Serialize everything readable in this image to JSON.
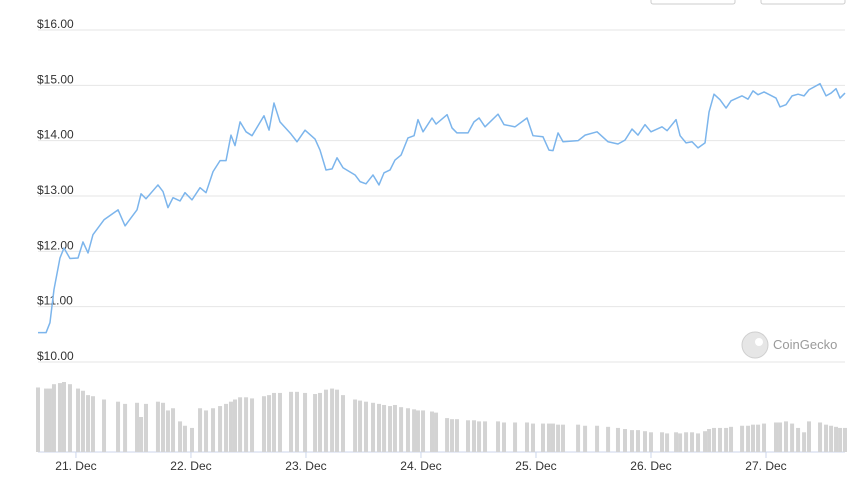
{
  "chart_data": {
    "type": "line",
    "watermark": "CoinGecko",
    "x": [
      20.67,
      20.74,
      20.774,
      20.809,
      20.861,
      20.896,
      20.948,
      21.018,
      21.061,
      21.105,
      21.148,
      21.244,
      21.366,
      21.427,
      21.531,
      21.566,
      21.609,
      21.713,
      21.757,
      21.8,
      21.844,
      21.905,
      21.948,
      22.009,
      22.079,
      22.131,
      22.192,
      22.253,
      22.305,
      22.348,
      22.383,
      22.427,
      22.479,
      22.531,
      22.635,
      22.679,
      22.722,
      22.774,
      22.87,
      22.922,
      22.992,
      23.079,
      23.122,
      23.174,
      23.227,
      23.27,
      23.322,
      23.427,
      23.47,
      23.522,
      23.583,
      23.635,
      23.679,
      23.731,
      23.774,
      23.827,
      23.887,
      23.94,
      23.974,
      24.018,
      24.096,
      24.131,
      24.227,
      24.27,
      24.313,
      24.409,
      24.461,
      24.505,
      24.557,
      24.67,
      24.722,
      24.818,
      24.922,
      24.974,
      25.061,
      25.113,
      25.148,
      25.192,
      25.235,
      25.366,
      25.427,
      25.531,
      25.627,
      25.713,
      25.774,
      25.835,
      25.887,
      25.948,
      26.0,
      26.096,
      26.14,
      26.218,
      26.253,
      26.305,
      26.357,
      26.409,
      26.47,
      26.505,
      26.548,
      26.6,
      26.653,
      26.696,
      26.792,
      26.844,
      26.887,
      26.931,
      26.983,
      27.087,
      27.122,
      27.174,
      27.227,
      27.279,
      27.331,
      27.374,
      27.47,
      27.522,
      27.566,
      27.609,
      27.644,
      27.687
    ],
    "series": [
      {
        "color": "#7cb5ec",
        "values": [
          10.53,
          10.53,
          10.71,
          11.31,
          11.88,
          12.06,
          11.87,
          11.88,
          12.17,
          11.97,
          12.3,
          12.57,
          12.75,
          12.46,
          12.75,
          13.04,
          12.95,
          13.2,
          13.08,
          12.79,
          12.97,
          12.91,
          13.06,
          12.93,
          13.15,
          13.06,
          13.44,
          13.64,
          13.64,
          14.1,
          13.91,
          14.34,
          14.16,
          14.09,
          14.45,
          14.19,
          14.68,
          14.34,
          14.12,
          13.98,
          14.19,
          14.03,
          13.83,
          13.47,
          13.49,
          13.69,
          13.51,
          13.38,
          13.26,
          13.22,
          13.38,
          13.2,
          13.42,
          13.47,
          13.65,
          13.74,
          14.05,
          14.09,
          14.38,
          14.16,
          14.41,
          14.3,
          14.47,
          14.23,
          14.14,
          14.14,
          14.34,
          14.41,
          14.25,
          14.48,
          14.29,
          14.25,
          14.41,
          14.09,
          14.07,
          13.83,
          13.82,
          14.14,
          13.98,
          14.0,
          14.1,
          14.16,
          13.98,
          13.94,
          14.01,
          14.21,
          14.1,
          14.29,
          14.16,
          14.25,
          14.18,
          14.38,
          14.09,
          13.96,
          13.98,
          13.87,
          13.96,
          14.52,
          14.84,
          14.74,
          14.59,
          14.72,
          14.81,
          14.75,
          14.9,
          14.83,
          14.88,
          14.77,
          14.61,
          14.65,
          14.81,
          14.84,
          14.81,
          14.92,
          15.03,
          14.81,
          14.86,
          14.94,
          14.77,
          14.86
        ]
      },
      {
        "type": "bar",
        "color": "#d3d3d3",
        "values": [
          59,
          58,
          58,
          62,
          63,
          64,
          62,
          58,
          56,
          52,
          51,
          48,
          46,
          44,
          45,
          32,
          44,
          46,
          45,
          38,
          40,
          28,
          24,
          22,
          40,
          38,
          40,
          42,
          44,
          46,
          48,
          50,
          50,
          49,
          51,
          52,
          54,
          54,
          55,
          55,
          54,
          53,
          54,
          57,
          58,
          57,
          52,
          48,
          47,
          46,
          45,
          44,
          43,
          42,
          43,
          41,
          40,
          39,
          38,
          38,
          37,
          36,
          31,
          30,
          30,
          29,
          29,
          28,
          28,
          28,
          27,
          27,
          27,
          26,
          26,
          26,
          26,
          25,
          25,
          25,
          24,
          24,
          23,
          22,
          21,
          20,
          20,
          19,
          18,
          18,
          17,
          18,
          17,
          18,
          18,
          17,
          19,
          21,
          22,
          22,
          22,
          23,
          24,
          24,
          25,
          25,
          26,
          27,
          27,
          28,
          26,
          22,
          18,
          28,
          27,
          25,
          24,
          23,
          22,
          22
        ]
      }
    ],
    "xlim": [
      20.67,
      27.687
    ],
    "xticks": [
      {
        "value": 21,
        "label": "21. Dec"
      },
      {
        "value": 22,
        "label": "22. Dec"
      },
      {
        "value": 23,
        "label": "23. Dec"
      },
      {
        "value": 24,
        "label": "24. Dec"
      },
      {
        "value": 25,
        "label": "25. Dec"
      },
      {
        "value": 26,
        "label": "26. Dec"
      },
      {
        "value": 27,
        "label": "27. Dec"
      }
    ],
    "ylim": [
      10,
      16
    ],
    "yticks": [
      {
        "value": 10,
        "label": "$10.00"
      },
      {
        "value": 11,
        "label": "$11.00"
      },
      {
        "value": 12,
        "label": "$12.00"
      },
      {
        "value": 13,
        "label": "$13.00"
      },
      {
        "value": 14,
        "label": "$14.00"
      },
      {
        "value": 15,
        "label": "$15.00"
      },
      {
        "value": 16,
        "label": "$16.00"
      }
    ],
    "grid": true
  }
}
